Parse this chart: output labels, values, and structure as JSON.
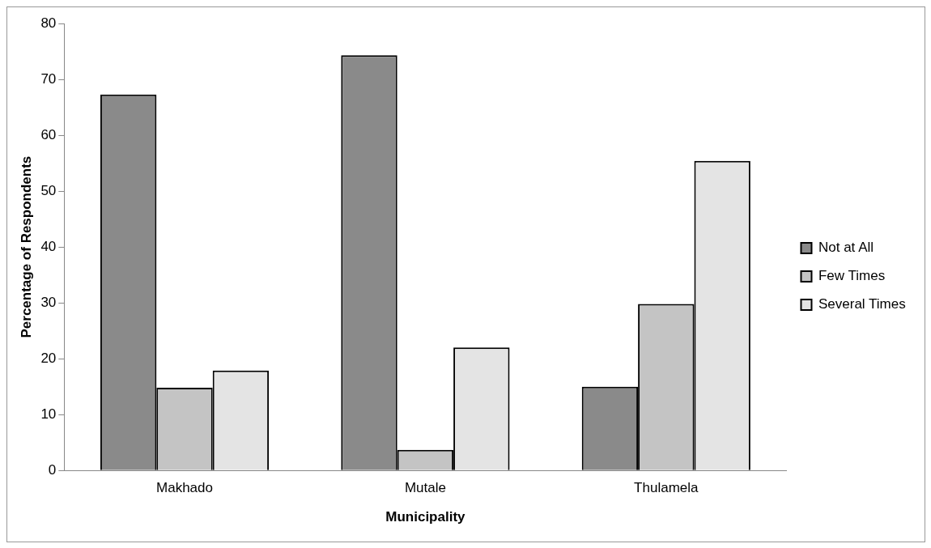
{
  "chart_data": {
    "type": "bar",
    "xlabel": "Municipality",
    "ylabel": "Percentage of Respondents",
    "categories": [
      "Makhado",
      "Mutale",
      "Thulamela"
    ],
    "series": [
      {
        "name": "Not at All",
        "color": "#8a8a8a",
        "values": [
          67.3,
          74.3,
          15.0
        ]
      },
      {
        "name": "Few Times",
        "color": "#c4c4c4",
        "values": [
          14.8,
          3.7,
          29.8
        ]
      },
      {
        "name": "Several Times",
        "color": "#e4e4e4",
        "values": [
          17.9,
          22.0,
          55.4
        ]
      }
    ],
    "ylim": [
      0,
      80
    ],
    "yticks": [
      0,
      10,
      20,
      30,
      40,
      50,
      60,
      70,
      80
    ],
    "grid": false,
    "legend": "right"
  }
}
